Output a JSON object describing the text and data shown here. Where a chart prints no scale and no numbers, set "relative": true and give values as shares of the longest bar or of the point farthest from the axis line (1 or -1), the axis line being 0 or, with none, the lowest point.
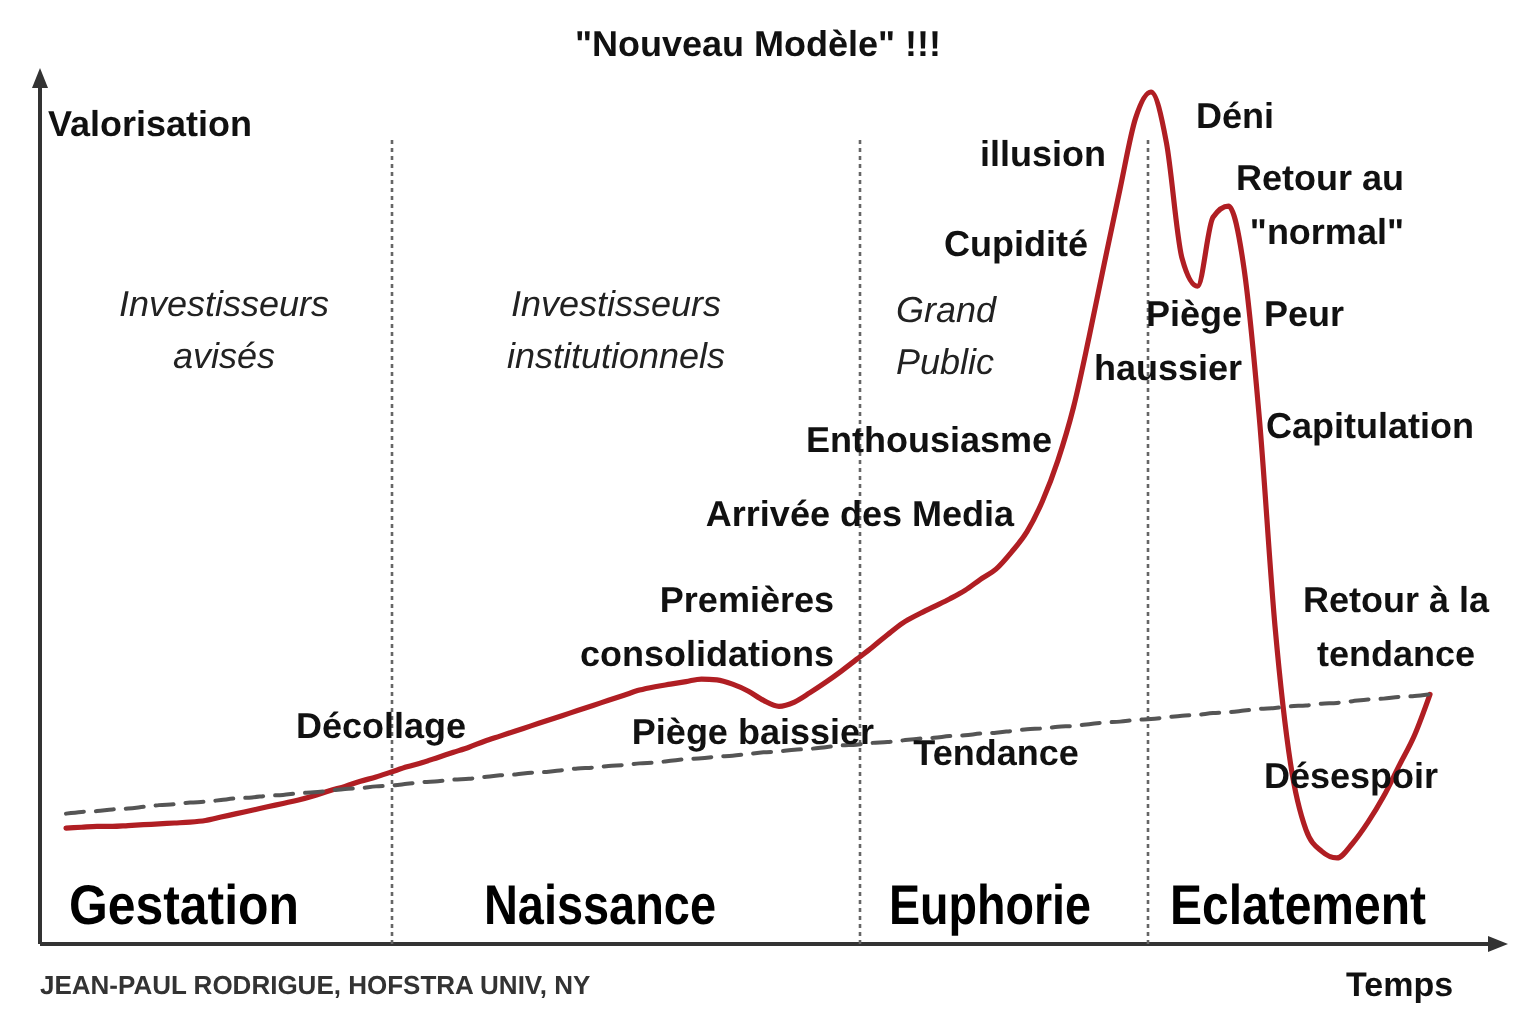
{
  "chart_data": {
    "type": "line",
    "relative": true,
    "xlabel": "Temps",
    "ylabel": "Valorisation",
    "categories": [
      null,
      null,
      null,
      null,
      null,
      null,
      null,
      null,
      null,
      null,
      null,
      null,
      null,
      null,
      null,
      null,
      null,
      null,
      null,
      null,
      null,
      null,
      null,
      null,
      null,
      null,
      null,
      null,
      null,
      null,
      null,
      null,
      null,
      null,
      null,
      null,
      null,
      null,
      null,
      null,
      null,
      null,
      null,
      null,
      null,
      null,
      null,
      null,
      null,
      null,
      null,
      null,
      null,
      null,
      null,
      null,
      null,
      null,
      null,
      null,
      null,
      null,
      null,
      null,
      null,
      null,
      null,
      null,
      null,
      null,
      null,
      null,
      null,
      null,
      null,
      null,
      null,
      null,
      null,
      null,
      null,
      null,
      null,
      null,
      null,
      null,
      null,
      null,
      null
    ],
    "series": [
      {
        "color": "#b01e23",
        "line_style": "solid",
        "values": [
          0.136,
          0.137,
          0.138,
          0.138,
          0.139,
          0.14,
          0.141,
          0.142,
          0.143,
          0.145,
          0.149,
          0.153,
          0.157,
          0.161,
          0.165,
          0.169,
          0.174,
          0.18,
          0.185,
          0.191,
          0.196,
          0.202,
          0.208,
          0.213,
          0.219,
          0.225,
          0.231,
          0.238,
          0.244,
          0.25,
          0.256,
          0.262,
          0.268,
          0.274,
          0.28,
          0.286,
          0.292,
          0.298,
          0.302,
          0.305,
          0.308,
          0.311,
          0.31,
          0.305,
          0.297,
          0.286,
          0.279,
          0.284,
          0.295,
          0.307,
          0.32,
          0.334,
          0.348,
          0.363,
          0.377,
          0.387,
          0.396,
          0.405,
          0.415,
          0.428,
          0.44,
          0.46,
          0.484,
          0.52,
          0.568,
          0.63,
          0.712,
          0.8,
          0.886,
          0.969,
          1,
          0.94,
          0.805,
          0.772,
          0.853,
          0.866,
          0.793,
          0.615,
          0.373,
          0.212,
          0.134,
          0.109,
          0.101,
          0.118,
          0.143,
          0.173,
          0.209,
          0.245,
          0.293
        ]
      },
      {
        "name": "Tendance",
        "color": "#555555",
        "line_style": "dashed",
        "values": [
          0.153,
          0.155,
          0.156,
          0.158,
          0.159,
          0.161,
          0.163,
          0.164,
          0.166,
          0.167,
          0.169,
          0.171,
          0.172,
          0.174,
          0.175,
          0.177,
          0.178,
          0.18,
          0.182,
          0.183,
          0.185,
          0.186,
          0.188,
          0.19,
          0.191,
          0.193,
          0.194,
          0.196,
          0.198,
          0.199,
          0.201,
          0.202,
          0.204,
          0.206,
          0.207,
          0.209,
          0.21,
          0.212,
          0.213,
          0.215,
          0.217,
          0.218,
          0.22,
          0.221,
          0.223,
          0.225,
          0.226,
          0.228,
          0.229,
          0.231,
          0.233,
          0.234,
          0.236,
          0.237,
          0.239,
          0.241,
          0.242,
          0.244,
          0.245,
          0.247,
          0.248,
          0.25,
          0.252,
          0.253,
          0.255,
          0.256,
          0.258,
          0.26,
          0.261,
          0.263,
          0.264,
          0.266,
          0.268,
          0.269,
          0.271,
          0.272,
          0.274,
          0.276,
          0.277,
          0.279,
          0.28,
          0.282,
          0.283,
          0.285,
          0.287,
          0.288,
          0.29,
          0.291,
          0.293
        ]
      }
    ],
    "annotations": [
      "\"Nouveau Modèle\" !!!",
      "illusion",
      "Cupidité",
      "Enthousiasme",
      "Arrivée des Media",
      "Premières\nconsolidations",
      "Piège baissier",
      "Décollage",
      "Déni",
      "Retour au\n\"normal\"",
      "Piège\nhaussier",
      "Peur",
      "Capitulation",
      "Retour à la\ntendance",
      "Désespoir",
      "Investisseurs\navisés",
      "Investisseurs\ninstitutionnels",
      "Grand\nPublic",
      "Gestation",
      "Naissance",
      "Euphorie",
      "Eclatement",
      "JEAN-PAUL RODRIGUE, HOFSTRA UNIV, NY"
    ]
  }
}
